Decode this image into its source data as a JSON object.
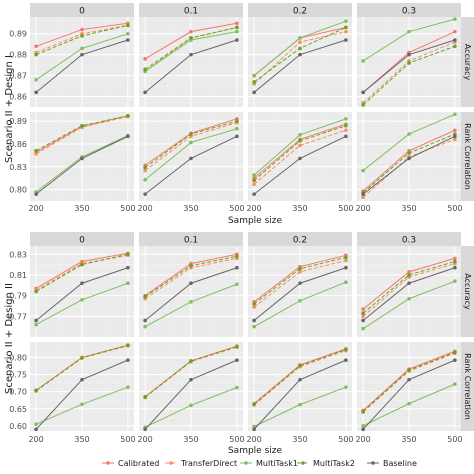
{
  "chart_data": {
    "type": "line",
    "x": [
      200,
      350,
      500
    ],
    "xlabel": "Sample size",
    "facet_columns": [
      "0",
      "0.1",
      "0.2",
      "0.3"
    ],
    "legend_position": "bottom",
    "grid": true,
    "series_styles": [
      {
        "name": "Calibrated",
        "color": "#f8766d",
        "linetype": "solid"
      },
      {
        "name": "TransferDirect",
        "color": "#fc8d62",
        "linetype": "dashed"
      },
      {
        "name": "MultiTask1",
        "color": "#7fbf5e",
        "linetype": "solid"
      },
      {
        "name": "MultiTask2",
        "color": "#66a61e",
        "linetype": "dashed"
      },
      {
        "name": "Baseline",
        "color": "#666666",
        "linetype": "solid"
      }
    ],
    "blocks": [
      {
        "label": "Scenario II + Design I",
        "rows": [
          {
            "label": "Accuracy",
            "ylim": [
              0.855,
              0.898
            ],
            "yticks": [
              0.86,
              0.87,
              0.88,
              0.89
            ],
            "panels": [
              {
                "Calibrated": [
                  0.884,
                  0.892,
                  0.895
                ],
                "TransferDirect": [
                  0.881,
                  0.89,
                  0.894
                ],
                "MultiTask1": [
                  0.868,
                  0.883,
                  0.89
                ],
                "MultiTask2": [
                  0.88,
                  0.889,
                  0.894
                ],
                "Baseline": [
                  0.862,
                  0.88,
                  0.887
                ]
              },
              {
                "Calibrated": [
                  0.878,
                  0.891,
                  0.895
                ],
                "TransferDirect": [
                  0.872,
                  0.888,
                  0.893
                ],
                "MultiTask1": [
                  0.872,
                  0.887,
                  0.891
                ],
                "MultiTask2": [
                  0.873,
                  0.888,
                  0.893
                ],
                "Baseline": [
                  0.862,
                  0.88,
                  0.887
                ]
              },
              {
                "Calibrated": [
                  0.87,
                  0.888,
                  0.893
                ],
                "TransferDirect": [
                  0.866,
                  0.886,
                  0.891
                ],
                "MultiTask1": [
                  0.87,
                  0.888,
                  0.896
                ],
                "MultiTask2": [
                  0.867,
                  0.883,
                  0.893
                ],
                "Baseline": [
                  0.862,
                  0.88,
                  0.887
                ]
              },
              {
                "Calibrated": [
                  0.862,
                  0.881,
                  0.891
                ],
                "TransferDirect": [
                  0.857,
                  0.877,
                  0.886
                ],
                "MultiTask1": [
                  0.877,
                  0.891,
                  0.897
                ],
                "MultiTask2": [
                  0.856,
                  0.876,
                  0.884
                ],
                "Baseline": [
                  0.862,
                  0.88,
                  0.887
                ]
              }
            ]
          },
          {
            "label": "Rank Correlation",
            "ylim": [
              0.785,
              0.902
            ],
            "yticks": [
              0.8,
              0.83,
              0.86,
              0.89
            ],
            "panels": [
              {
                "Calibrated": [
                  0.849,
                  0.883,
                  0.897
                ],
                "TransferDirect": [
                  0.847,
                  0.882,
                  0.896
                ],
                "MultiTask1": [
                  0.797,
                  0.843,
                  0.871
                ],
                "MultiTask2": [
                  0.851,
                  0.884,
                  0.897
                ],
                "Baseline": [
                  0.794,
                  0.841,
                  0.87
                ]
              },
              {
                "Calibrated": [
                  0.832,
                  0.874,
                  0.893
                ],
                "TransferDirect": [
                  0.825,
                  0.87,
                  0.888
                ],
                "MultiTask1": [
                  0.813,
                  0.862,
                  0.88
                ],
                "MultiTask2": [
                  0.829,
                  0.873,
                  0.89
                ],
                "Baseline": [
                  0.794,
                  0.841,
                  0.87
                ]
              },
              {
                "Calibrated": [
                  0.815,
                  0.866,
                  0.886
                ],
                "TransferDirect": [
                  0.807,
                  0.858,
                  0.878
                ],
                "MultiTask1": [
                  0.819,
                  0.872,
                  0.893
                ],
                "MultiTask2": [
                  0.812,
                  0.864,
                  0.884
                ],
                "Baseline": [
                  0.794,
                  0.841,
                  0.87
                ]
              },
              {
                "Calibrated": [
                  0.798,
                  0.851,
                  0.878
                ],
                "TransferDirect": [
                  0.79,
                  0.843,
                  0.866
                ],
                "MultiTask1": [
                  0.825,
                  0.873,
                  0.899
                ],
                "MultiTask2": [
                  0.796,
                  0.848,
                  0.873
                ],
                "Baseline": [
                  0.794,
                  0.841,
                  0.87
                ]
              }
            ]
          }
        ]
      },
      {
        "label": "Scenario II + Design II",
        "rows": [
          {
            "label": "Accuracy",
            "ylim": [
              0.75,
              0.838
            ],
            "yticks": [
              0.77,
              0.79,
              0.81,
              0.83
            ],
            "panels": [
              {
                "Calibrated": [
                  0.797,
                  0.823,
                  0.831
                ],
                "TransferDirect": [
                  0.795,
                  0.821,
                  0.829
                ],
                "MultiTask1": [
                  0.762,
                  0.786,
                  0.802
                ],
                "MultiTask2": [
                  0.794,
                  0.82,
                  0.83
                ],
                "Baseline": [
                  0.766,
                  0.802,
                  0.817
                ]
              },
              {
                "Calibrated": [
                  0.79,
                  0.821,
                  0.83
                ],
                "TransferDirect": [
                  0.787,
                  0.817,
                  0.826
                ],
                "MultiTask1": [
                  0.76,
                  0.784,
                  0.801
                ],
                "MultiTask2": [
                  0.789,
                  0.819,
                  0.828
                ],
                "Baseline": [
                  0.766,
                  0.802,
                  0.817
                ]
              },
              {
                "Calibrated": [
                  0.784,
                  0.818,
                  0.829
                ],
                "TransferDirect": [
                  0.779,
                  0.813,
                  0.824
                ],
                "MultiTask1": [
                  0.76,
                  0.785,
                  0.803
                ],
                "MultiTask2": [
                  0.782,
                  0.816,
                  0.827
                ],
                "Baseline": [
                  0.766,
                  0.802,
                  0.817
                ]
              },
              {
                "Calibrated": [
                  0.777,
                  0.813,
                  0.826
                ],
                "TransferDirect": [
                  0.77,
                  0.808,
                  0.821
                ],
                "MultiTask1": [
                  0.758,
                  0.787,
                  0.804
                ],
                "MultiTask2": [
                  0.773,
                  0.81,
                  0.823
                ],
                "Baseline": [
                  0.766,
                  0.802,
                  0.817
                ]
              }
            ]
          },
          {
            "label": "Rank Correlation",
            "ylim": [
              0.585,
              0.845
            ],
            "yticks": [
              0.6,
              0.65,
              0.7,
              0.75,
              0.8
            ],
            "panels": [
              {
                "Calibrated": [
                  0.704,
                  0.8,
                  0.836
                ],
                "TransferDirect": [
                  0.702,
                  0.798,
                  0.834
                ],
                "MultiTask1": [
                  0.605,
                  0.663,
                  0.713
                ],
                "MultiTask2": [
                  0.703,
                  0.799,
                  0.835
                ],
                "Baseline": [
                  0.59,
                  0.735,
                  0.792
                ]
              },
              {
                "Calibrated": [
                  0.685,
                  0.79,
                  0.833
                ],
                "TransferDirect": [
                  0.683,
                  0.788,
                  0.83
                ],
                "MultiTask1": [
                  0.596,
                  0.66,
                  0.712
                ],
                "MultiTask2": [
                  0.684,
                  0.789,
                  0.831
                ],
                "Baseline": [
                  0.59,
                  0.735,
                  0.792
                ]
              },
              {
                "Calibrated": [
                  0.665,
                  0.778,
                  0.825
                ],
                "TransferDirect": [
                  0.661,
                  0.773,
                  0.82
                ],
                "MultiTask1": [
                  0.598,
                  0.662,
                  0.713
                ],
                "MultiTask2": [
                  0.663,
                  0.776,
                  0.823
                ],
                "Baseline": [
                  0.59,
                  0.735,
                  0.792
                ]
              },
              {
                "Calibrated": [
                  0.645,
                  0.766,
                  0.818
                ],
                "TransferDirect": [
                  0.64,
                  0.76,
                  0.812
                ],
                "MultiTask1": [
                  0.6,
                  0.665,
                  0.722
                ],
                "MultiTask2": [
                  0.642,
                  0.763,
                  0.815
                ],
                "Baseline": [
                  0.59,
                  0.735,
                  0.792
                ]
              }
            ]
          }
        ]
      }
    ]
  }
}
